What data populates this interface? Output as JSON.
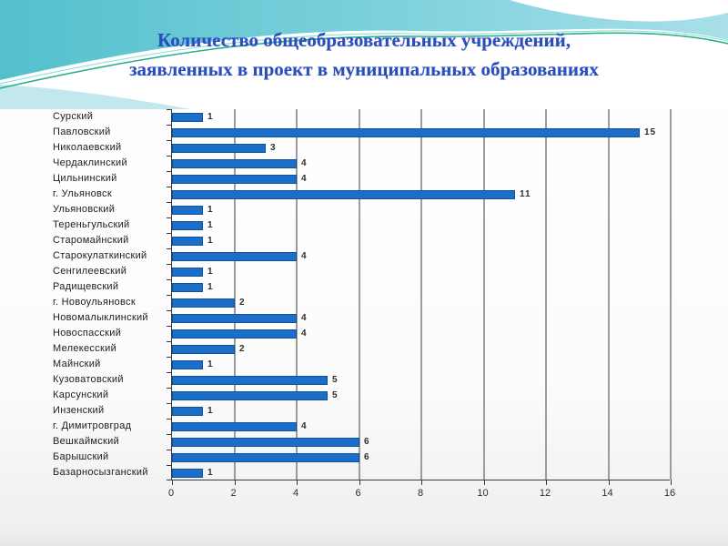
{
  "title": {
    "line1": "Количество общеобразовательных учреждений,",
    "line2": "заявленных в проект в муниципальных образованиях"
  },
  "colors": {
    "bar_fill": "#1d6ec9",
    "bar_border": "#0f519b",
    "title_text": "#2a4dbe",
    "gridline": "#9c9c9c",
    "axis": "#3a3a3a",
    "wave_teal_left": "#54c0cc",
    "wave_teal_right": "#a9dfe9",
    "wave_line_green": "#2fae8f"
  },
  "chart_data": {
    "type": "bar",
    "orientation": "horizontal",
    "title": "Количество общеобразовательных учреждений, заявленных в проект в муниципальных образованиях",
    "categories": [
      "Сурский",
      "Павловский",
      "Николаевский",
      "Чердаклинский",
      "Цильнинский",
      "г. Ульяновск",
      "Ульяновский",
      "Тереньгульский",
      "Старомайнский",
      "Старокулаткинский",
      "Сенгилеевский",
      "Радищевский",
      "г. Новоульяновск",
      "Новомалыклинский",
      "Новоспасский",
      "Мелекесский",
      "Майнский",
      "Кузоватовский",
      "Карсунский",
      "Инзенский",
      "г. Димитровград",
      "Вешкаймский",
      "Барышский",
      "Базарносызганский"
    ],
    "values": [
      1,
      15,
      3,
      4,
      4,
      11,
      1,
      1,
      1,
      4,
      1,
      1,
      2,
      4,
      4,
      2,
      1,
      5,
      5,
      1,
      4,
      6,
      6,
      1
    ],
    "data_labels": [
      1,
      15,
      3,
      4,
      4,
      11,
      1,
      1,
      1,
      4,
      1,
      1,
      2,
      4,
      4,
      2,
      1,
      5,
      5,
      1,
      4,
      6,
      6,
      1
    ],
    "xlabel": "",
    "ylabel": "",
    "xlim": [
      0,
      16
    ],
    "x_ticks": [
      0,
      2,
      4,
      6,
      8,
      10,
      12,
      14,
      16
    ],
    "grid": "vertical gridlines every 2 units",
    "legend": "none",
    "bar_color": "#1d6ec9"
  }
}
